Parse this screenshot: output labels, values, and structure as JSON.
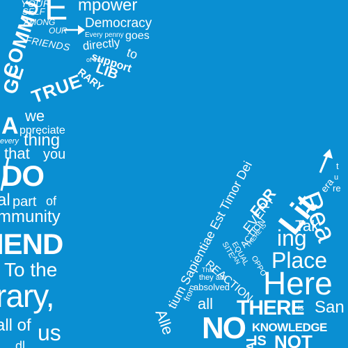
{
  "top_arc": {
    "your": "YOUR",
    "self": "SELF",
    "among": "AMONG",
    "our": "OUR",
    "friends": "FRIENDS",
    "e": "E",
    "mpower": "mpower",
    "democracy": "Democracy",
    "every_penny": "Every penny",
    "goes": "goes",
    "directly": "directly",
    "to": "to",
    "of_the": "of the",
    "support": "support",
    "lib": "LIB",
    "rary": "RARY",
    "true": "TRUE",
    "commun": "COMMUN",
    "ge": "GE"
  },
  "left_column": {
    "we": "we",
    "a": "A",
    "appreciate": "ppreciate",
    "every": "every",
    "thing": "thing",
    "that": "that",
    "you": "you",
    "do": "DO",
    "al": "al",
    "part": "part",
    "of": "of",
    "mmunity": "mmunity",
    "iend": "IEND",
    "to_the": "To the",
    "rary": "rary,",
    "all_of": "all of",
    "us": "us",
    "dl": "dl"
  },
  "right_cluster": {
    "lit": "Lit",
    "era": "era",
    "t": "t",
    "u": "u",
    "re": "re",
    "read": "Rea",
    "for": "FOR",
    "every": "EVERY",
    "action": "ACTION",
    "there_is": "THERE IS",
    "an": "AN",
    "equal": "EQUAL",
    "oppo": "OPPO",
    "site": "SITE",
    "reaction": "REACTION",
    "ing": "ing",
    "taking": "Tak",
    "place": "Place",
    "here": "Here",
    "that": "That",
    "they_are": "they are",
    "absolved": "absolved",
    "all": "all",
    "there": "THERE",
    "is": "is",
    "san": "San",
    "no": "NO",
    "knowledge": "KNOWLEDGE",
    "is_small": "IS",
    "not": "NOT",
    "ai": "AI",
    "from": "from",
    "alle": "Alle",
    "latin": "tium Sapientiae Est Timor Dei"
  }
}
